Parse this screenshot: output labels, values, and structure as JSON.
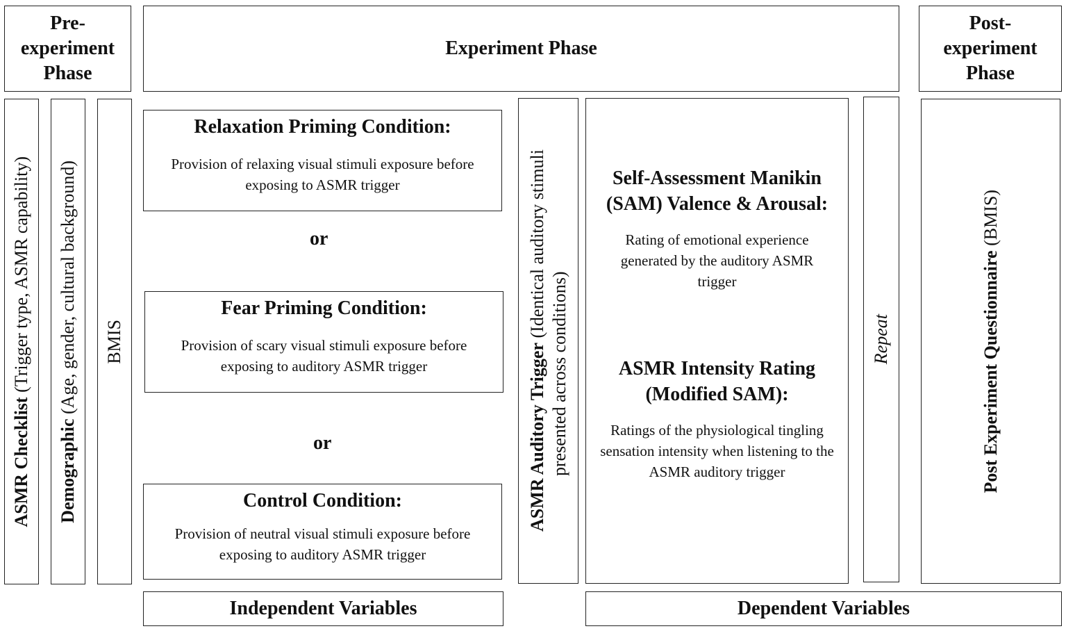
{
  "phases": {
    "pre": "Pre-experiment Phase",
    "experiment": "Experiment Phase",
    "post": "Post-experiment Phase"
  },
  "pre_measures": [
    {
      "bold": "ASMR Checklist",
      "rest": " (Trigger type, ASMR capability)"
    },
    {
      "bold": "Demographic",
      "rest": " (Age, gender, cultural background)"
    },
    {
      "bold": "",
      "rest": "BMIS"
    }
  ],
  "conditions": [
    {
      "title": "Relaxation Priming Condition:",
      "desc": "Provision of relaxing visual stimuli exposure before exposing to ASMR trigger"
    },
    {
      "title": "Fear Priming Condition:",
      "desc": "Provision of scary visual stimuli exposure before exposing to auditory ASMR trigger"
    },
    {
      "title": "Control Condition:",
      "desc": "Provision of neutral visual stimuli exposure before exposing to auditory ASMR trigger"
    }
  ],
  "or_label": "or",
  "trigger": {
    "bold": "ASMR Auditory Trigger",
    "line1": " (Identical auditory stimuli",
    "line2": "presented across conditions)"
  },
  "dependent": {
    "sam_title": "Self-Assessment Manikin (SAM) Valence & Arousal:",
    "sam_desc": "Rating of emotional experience generated by the auditory ASMR trigger",
    "intensity_title": "ASMR Intensity Rating (Modified SAM):",
    "intensity_desc": "Ratings of the physiological tingling sensation intensity when listening to the ASMR auditory trigger"
  },
  "repeat_label": "Repeat",
  "post_measure": {
    "bold": "Post Experiment Questionnaire",
    "rest": " (BMIS)"
  },
  "footers": {
    "independent": "Independent Variables",
    "dependent": "Dependent Variables"
  }
}
